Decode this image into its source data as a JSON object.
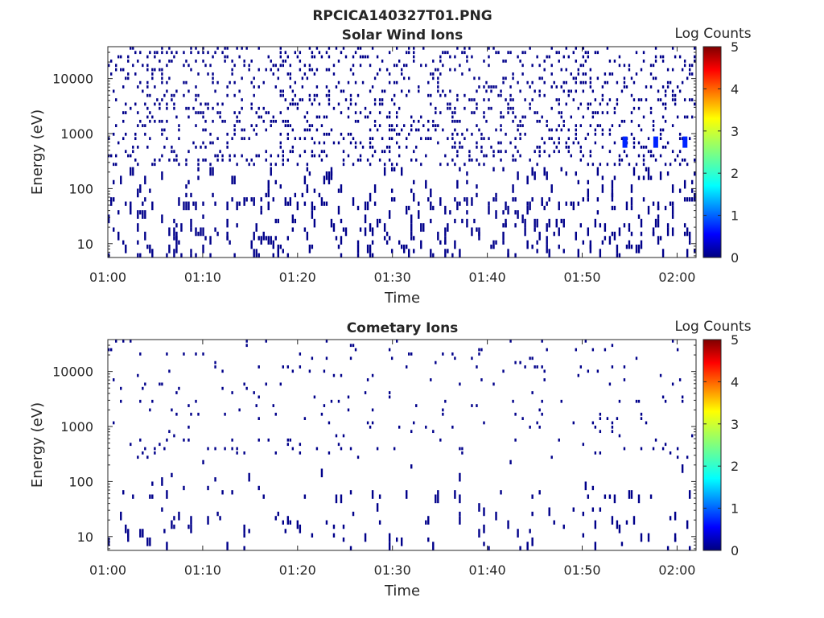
{
  "figure": {
    "title": "RPCICA140327T01.PNG"
  },
  "chart_data": [
    {
      "type": "heatmap",
      "title": "Solar Wind Ions",
      "xlabel": "Time",
      "ylabel": "Energy (eV)",
      "x_ticks": [
        "01:00",
        "01:10",
        "01:20",
        "01:30",
        "01:40",
        "01:50",
        "02:00"
      ],
      "xlim": [
        "01:00",
        "02:02"
      ],
      "y_scale": "log",
      "y_ticks": [
        10,
        100,
        1000,
        10000
      ],
      "ylim": [
        5.6,
        38000
      ],
      "colorbar": {
        "label": "Log Counts",
        "ticks": [
          0,
          1,
          2,
          3,
          4,
          5
        ],
        "range": [
          0,
          5
        ],
        "colormap": "jet"
      },
      "bright_cells": [
        {
          "time": "01:54:30",
          "energy_ev": 700,
          "log_counts": 0.8
        },
        {
          "time": "01:57:45",
          "energy_ev": 700,
          "log_counts": 0.8
        },
        {
          "time": "02:00:50",
          "energy_ev": 700,
          "log_counts": 0.8
        }
      ],
      "density": {
        "low": 0.12,
        "high": 0.22,
        "floor_ev": 230,
        "band_ev": [
          50,
          70
        ],
        "band_density": 0.18
      }
    },
    {
      "type": "heatmap",
      "title": "Cometary Ions",
      "xlabel": "Time",
      "ylabel": "Energy (eV)",
      "x_ticks": [
        "01:00",
        "01:10",
        "01:20",
        "01:30",
        "01:40",
        "01:50",
        "02:00"
      ],
      "xlim": [
        "01:00",
        "02:02"
      ],
      "y_scale": "log",
      "y_ticks": [
        10,
        100,
        1000,
        10000
      ],
      "ylim": [
        5.6,
        38000
      ],
      "colorbar": {
        "label": "Log Counts",
        "ticks": [
          0,
          1,
          2,
          3,
          4,
          5
        ],
        "range": [
          0,
          5
        ],
        "colormap": "jet"
      },
      "bright_cells": [],
      "density": {
        "low": 0.02,
        "high": 0.05,
        "floor_ev": 230,
        "band_ev": [
          50,
          70
        ],
        "band_density": 0.08
      }
    }
  ]
}
